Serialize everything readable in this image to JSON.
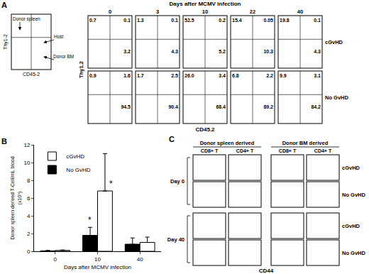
{
  "figure": {
    "panel_a": {
      "label": "A",
      "key_plot": {
        "y_label": "Thy1-2",
        "x_label": "CD45-2",
        "populations": {
          "upper_left": "Donor spleen",
          "right": "Host",
          "lower_right": "Donor BM"
        }
      },
      "header": "Days after MCMV infection",
      "days": [
        "0",
        "3",
        "10",
        "22",
        "40"
      ],
      "rows": [
        {
          "name": "cGvHD",
          "upper_left": [
            "0.7",
            "1.3",
            "52.5",
            "15.4",
            "19.8"
          ],
          "upper_right": [
            "0.1",
            "0.1",
            "0.2",
            "0.05",
            "0.1"
          ],
          "lower_right": [
            "3.2",
            "4.3",
            "5.2",
            "10.3",
            "4.3"
          ]
        },
        {
          "name": "No GvHD",
          "upper_left": [
            "0.9",
            "1.7",
            "26.0",
            "6.8",
            "9.9"
          ],
          "upper_right": [
            "1.6",
            "2.5",
            "3.4",
            "2.2",
            "3.1"
          ],
          "lower_right": [
            "94.5",
            "90.4",
            "68.4",
            "89.2",
            "84.2"
          ]
        }
      ],
      "y_label": "Thy1.2",
      "x_label": "CD45.2"
    },
    "panel_b": {
      "label": "B"
    },
    "panel_c": {
      "label": "C",
      "groups": [
        {
          "name": "Donor spleen derived",
          "columns": [
            "CD8+ T",
            "CD4+ T"
          ]
        },
        {
          "name": "Donor BM derived",
          "columns": [
            "CD8+ T",
            "CD4+ T"
          ]
        }
      ],
      "days": [
        "Day 0",
        "Day 40"
      ],
      "rows": [
        "cGvHD",
        "No GvHD"
      ],
      "x_label": "CD44"
    }
  },
  "chart_data": {
    "type": "bar",
    "xlabel": "Days after MCMV infection",
    "ylabel": [
      "Donor spleen derived T-Cell/mL blood",
      "(x10⁶)"
    ],
    "categories": [
      "0",
      "10",
      "40"
    ],
    "series": [
      {
        "name": "No GvHD",
        "color": "#000000",
        "values": [
          0.05,
          1.8,
          0.8
        ],
        "errors": [
          0.05,
          0.9,
          0.7
        ]
      },
      {
        "name": "cGvHD",
        "color": "#ffffff",
        "values": [
          0.1,
          6.8,
          1.0
        ],
        "errors": [
          0.05,
          4.2,
          0.6
        ]
      }
    ],
    "ylim": [
      0,
      12
    ],
    "yticks": [
      0,
      2,
      4,
      6,
      8,
      10,
      12
    ],
    "legend": "upper left",
    "annotations": [
      {
        "text": "*",
        "category": "10",
        "series": "No GvHD",
        "y": 2.8
      },
      {
        "text": "*",
        "category": "10",
        "series": "cGvHD",
        "y": 6.9
      }
    ]
  }
}
